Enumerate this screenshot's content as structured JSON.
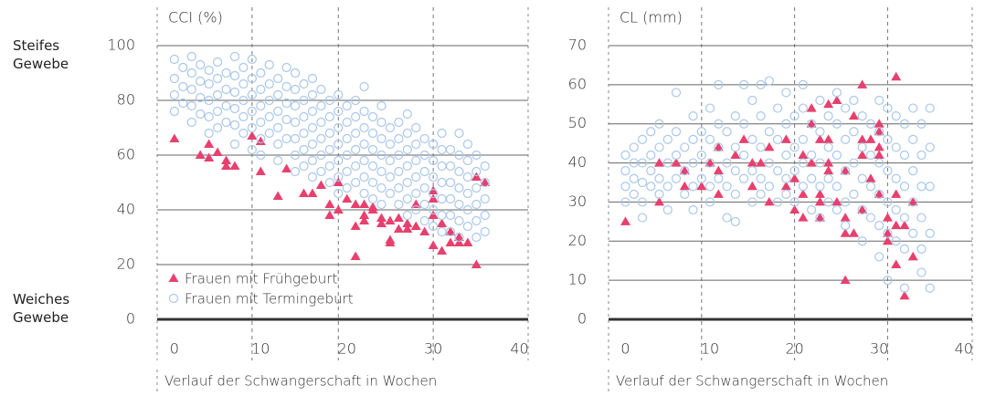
{
  "chart_data": [
    {
      "type": "scatter",
      "y_label": "CCI (%)",
      "x_label": "Verlauf der Schwangerschaft in Wochen",
      "annotations": [
        "Steifes Gewebe",
        "Weiches Gewebe"
      ],
      "xlim": [
        -2,
        41
      ],
      "ylim": [
        0,
        100
      ],
      "xticks": [
        0,
        10,
        20,
        30,
        40
      ],
      "yticks": [
        0,
        20,
        40,
        60,
        80,
        100
      ],
      "vlines": [
        9,
        19,
        30
      ],
      "grid": true,
      "legend": "lower left",
      "series": [
        {
          "name": "Frauen mit Frühgeburt",
          "color": "#e8406e",
          "marker": "triangle",
          "x": [
            0,
            3,
            4,
            4,
            5,
            6,
            6,
            7,
            9,
            10,
            10,
            12,
            13,
            15,
            16,
            17,
            18,
            18,
            19,
            19,
            20,
            21,
            21,
            21,
            22,
            22,
            22,
            23,
            23,
            24,
            24,
            25,
            25,
            25,
            26,
            26,
            27,
            27,
            28,
            28,
            29,
            30,
            30,
            30,
            30,
            31,
            31,
            32,
            32,
            33,
            33,
            34,
            35,
            35,
            36
          ],
          "values": [
            66,
            60,
            59,
            64,
            61,
            56,
            58,
            56,
            67,
            65,
            54,
            45,
            55,
            46,
            46,
            49,
            42,
            38,
            50,
            40,
            44,
            23,
            42,
            34,
            42,
            38,
            36,
            41,
            40,
            37,
            35,
            36,
            29,
            28,
            37,
            33,
            35,
            33,
            42,
            34,
            32,
            47,
            44,
            38,
            27,
            35,
            25,
            32,
            28,
            30,
            28,
            28,
            52,
            20,
            50
          ]
        },
        {
          "name": "Frauen mit Termingeburt",
          "color": "#a9c7ea",
          "marker": "circle",
          "x": [
            0,
            0,
            0,
            0,
            1,
            1,
            1,
            2,
            2,
            2,
            2,
            2,
            3,
            3,
            3,
            3,
            4,
            4,
            4,
            4,
            4,
            5,
            5,
            5,
            5,
            5,
            6,
            6,
            6,
            6,
            7,
            7,
            7,
            7,
            7,
            7,
            8,
            8,
            8,
            8,
            8,
            9,
            9,
            9,
            9,
            9,
            9,
            10,
            10,
            10,
            10,
            10,
            10,
            11,
            11,
            11,
            11,
            11,
            12,
            12,
            12,
            12,
            12,
            12,
            13,
            13,
            13,
            13,
            13,
            14,
            14,
            14,
            14,
            14,
            14,
            14,
            15,
            15,
            15,
            15,
            15,
            15,
            16,
            16,
            16,
            16,
            16,
            16,
            16,
            17,
            17,
            17,
            17,
            17,
            17,
            18,
            18,
            18,
            18,
            18,
            18,
            19,
            19,
            19,
            19,
            19,
            19,
            19,
            20,
            20,
            20,
            20,
            20,
            20,
            21,
            21,
            21,
            21,
            21,
            21,
            22,
            22,
            22,
            22,
            22,
            22,
            22,
            23,
            23,
            23,
            23,
            23,
            23,
            24,
            24,
            24,
            24,
            24,
            24,
            24,
            25,
            25,
            25,
            25,
            25,
            26,
            26,
            26,
            26,
            26,
            26,
            27,
            27,
            27,
            27,
            27,
            27,
            27,
            28,
            28,
            28,
            28,
            28,
            28,
            29,
            29,
            29,
            29,
            29,
            29,
            30,
            30,
            30,
            30,
            30,
            30,
            31,
            31,
            31,
            31,
            31,
            31,
            31,
            32,
            32,
            32,
            32,
            32,
            32,
            33,
            33,
            33,
            33,
            33,
            33,
            33,
            34,
            34,
            34,
            34,
            34,
            34,
            35,
            35,
            35,
            35,
            35,
            35,
            36,
            36,
            36,
            36,
            36
          ],
          "values": [
            95,
            88,
            82,
            76,
            92,
            85,
            79,
            96,
            90,
            84,
            78,
            72,
            93,
            87,
            81,
            75,
            91,
            86,
            80,
            74,
            68,
            94,
            88,
            82,
            76,
            70,
            90,
            84,
            78,
            72,
            96,
            89,
            83,
            77,
            71,
            64,
            92,
            86,
            80,
            74,
            68,
            95,
            88,
            82,
            76,
            70,
            62,
            90,
            84,
            78,
            72,
            66,
            60,
            93,
            86,
            80,
            74,
            68,
            88,
            82,
            76,
            70,
            64,
            58,
            92,
            85,
            79,
            73,
            66,
            90,
            84,
            78,
            72,
            66,
            60,
            54,
            86,
            80,
            74,
            68,
            62,
            56,
            88,
            82,
            76,
            70,
            64,
            58,
            52,
            84,
            78,
            72,
            66,
            60,
            54,
            80,
            74,
            68,
            62,
            56,
            50,
            82,
            76,
            70,
            64,
            58,
            52,
            46,
            78,
            72,
            66,
            60,
            54,
            48,
            80,
            74,
            68,
            62,
            56,
            50,
            85,
            76,
            70,
            64,
            58,
            52,
            46,
            74,
            68,
            62,
            56,
            50,
            44,
            78,
            72,
            66,
            60,
            54,
            48,
            42,
            70,
            64,
            58,
            52,
            46,
            72,
            66,
            60,
            54,
            48,
            42,
            75,
            68,
            62,
            56,
            50,
            44,
            38,
            70,
            64,
            58,
            52,
            46,
            40,
            66,
            60,
            54,
            48,
            42,
            36,
            64,
            58,
            52,
            46,
            40,
            34,
            68,
            62,
            56,
            50,
            44,
            38,
            32,
            62,
            56,
            50,
            44,
            38,
            32,
            68,
            60,
            54,
            48,
            42,
            36,
            30,
            64,
            58,
            52,
            46,
            40,
            34,
            60,
            54,
            48,
            42,
            36,
            30,
            56,
            50,
            44,
            38,
            32
          ]
        }
      ]
    },
    {
      "type": "scatter",
      "y_label": "CL (mm)",
      "x_label": "Verlauf der Schwangerschaft in Wochen",
      "xlim": [
        -2,
        41
      ],
      "ylim": [
        0,
        70
      ],
      "xticks": [
        0,
        10,
        20,
        30,
        40
      ],
      "yticks": [
        0,
        10,
        20,
        30,
        40,
        50,
        60,
        70
      ],
      "vlines": [
        9,
        20,
        31
      ],
      "grid": true,
      "series": [
        {
          "name": "Frauen mit Frühgeburt",
          "color": "#e8406e",
          "marker": "triangle",
          "x": [
            0,
            4,
            4,
            6,
            7,
            7,
            9,
            10,
            11,
            11,
            11,
            13,
            14,
            15,
            15,
            16,
            17,
            17,
            19,
            19,
            20,
            20,
            21,
            21,
            21,
            22,
            22,
            22,
            23,
            23,
            23,
            23,
            24,
            24,
            24,
            24,
            25,
            25,
            26,
            26,
            26,
            26,
            27,
            27,
            28,
            28,
            28,
            28,
            29,
            29,
            30,
            30,
            30,
            30,
            30,
            31,
            31,
            31,
            32,
            32,
            32,
            32,
            33,
            33,
            34,
            34
          ],
          "values": [
            25,
            30,
            40,
            40,
            38,
            34,
            34,
            40,
            44,
            32,
            38,
            42,
            46,
            34,
            40,
            40,
            44,
            30,
            46,
            34,
            36,
            28,
            42,
            32,
            26,
            50,
            54,
            40,
            46,
            32,
            30,
            26,
            55,
            46,
            40,
            38,
            56,
            30,
            38,
            26,
            10,
            22,
            52,
            22,
            60,
            46,
            42,
            28,
            36,
            46,
            50,
            48,
            44,
            42,
            32,
            26,
            22,
            20,
            62,
            32,
            24,
            14,
            6,
            24,
            30,
            16
          ]
        },
        {
          "name": "Frauen mit Termingeburt",
          "color": "#a9c7ea",
          "marker": "circle",
          "x": [
            0,
            0,
            0,
            0,
            1,
            1,
            1,
            1,
            2,
            2,
            2,
            2,
            2,
            3,
            3,
            3,
            3,
            4,
            4,
            4,
            4,
            5,
            5,
            5,
            5,
            6,
            6,
            6,
            6,
            7,
            7,
            7,
            8,
            8,
            8,
            8,
            8,
            9,
            9,
            9,
            10,
            10,
            10,
            10,
            10,
            11,
            11,
            11,
            11,
            12,
            12,
            12,
            12,
            13,
            13,
            13,
            13,
            13,
            14,
            14,
            14,
            14,
            15,
            15,
            15,
            15,
            16,
            16,
            16,
            16,
            16,
            17,
            17,
            17,
            17,
            18,
            18,
            18,
            18,
            19,
            19,
            19,
            19,
            19,
            20,
            20,
            20,
            20,
            21,
            21,
            21,
            21,
            21,
            22,
            22,
            22,
            22,
            23,
            23,
            23,
            23,
            23,
            24,
            24,
            24,
            24,
            25,
            25,
            25,
            25,
            25,
            26,
            26,
            26,
            26,
            26,
            27,
            27,
            27,
            27,
            28,
            28,
            28,
            28,
            28,
            29,
            29,
            29,
            29,
            30,
            30,
            30,
            30,
            30,
            30,
            31,
            31,
            31,
            31,
            31,
            31,
            32,
            32,
            32,
            32,
            32,
            33,
            33,
            33,
            33,
            33,
            33,
            34,
            34,
            34,
            34,
            34,
            35,
            35,
            35,
            35,
            35,
            35,
            36,
            36,
            36,
            36,
            36
          ],
          "values": [
            42,
            38,
            34,
            30,
            44,
            40,
            36,
            32,
            46,
            40,
            35,
            30,
            26,
            48,
            42,
            38,
            34,
            50,
            44,
            36,
            32,
            46,
            40,
            34,
            28,
            58,
            48,
            42,
            36,
            44,
            38,
            32,
            52,
            46,
            40,
            34,
            28,
            48,
            42,
            36,
            54,
            46,
            40,
            34,
            30,
            60,
            50,
            44,
            36,
            48,
            40,
            34,
            26,
            52,
            44,
            38,
            32,
            25,
            60,
            50,
            42,
            36,
            56,
            46,
            38,
            30,
            60,
            52,
            44,
            36,
            32,
            61,
            48,
            40,
            34,
            54,
            46,
            38,
            30,
            58,
            50,
            42,
            36,
            32,
            52,
            44,
            38,
            30,
            60,
            54,
            46,
            40,
            34,
            50,
            42,
            36,
            28,
            56,
            48,
            40,
            34,
            26,
            52,
            44,
            36,
            30,
            58,
            50,
            42,
            34,
            28,
            54,
            46,
            38,
            30,
            24,
            56,
            48,
            40,
            32,
            52,
            44,
            36,
            28,
            20,
            50,
            42,
            34,
            26,
            56,
            48,
            40,
            32,
            24,
            16,
            54,
            46,
            38,
            30,
            22,
            10,
            52,
            44,
            36,
            28,
            20,
            50,
            42,
            34,
            26,
            18,
            8,
            54,
            46,
            38,
            30,
            22,
            50,
            42,
            34,
            26,
            18,
            12,
            54,
            44,
            34,
            22,
            8
          ]
        }
      ]
    }
  ]
}
